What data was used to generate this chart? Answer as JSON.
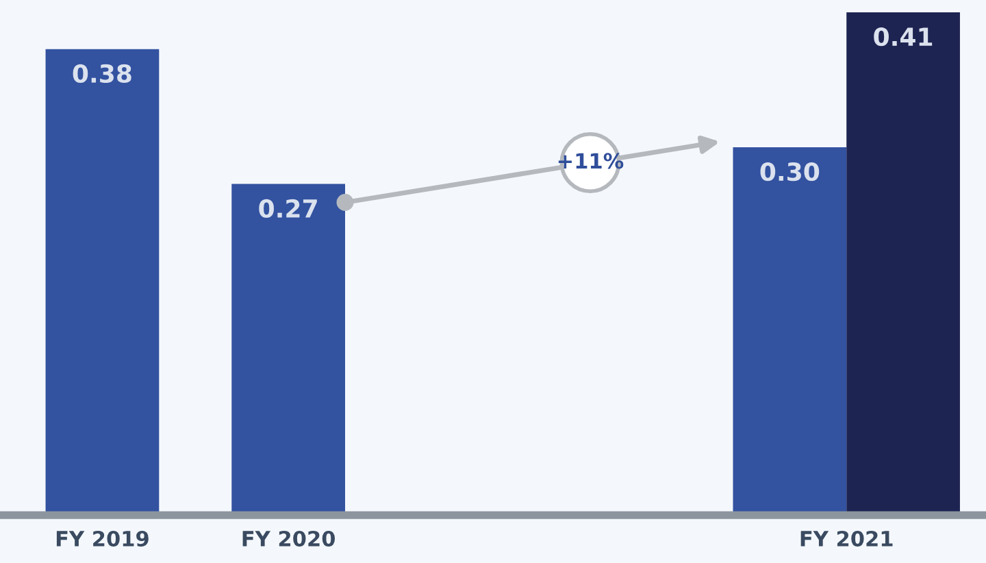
{
  "chart_data": {
    "type": "bar",
    "categories": [
      "FY 2019",
      "FY 2020",
      null,
      null,
      "FY 2021"
    ],
    "series": [
      {
        "color": "#3352a0",
        "values": [
          0.38,
          0.27,
          null,
          null,
          0.3
        ],
        "value_labels": [
          "0.38",
          "0.27",
          null,
          null,
          "0.30"
        ]
      },
      {
        "color": "#1e2452",
        "values": [
          null,
          null,
          null,
          null,
          0.41
        ],
        "value_labels": [
          null,
          null,
          null,
          null,
          "0.41"
        ]
      }
    ],
    "ylim": [
      0,
      0.42
    ],
    "tick_labels": "x",
    "grid": false,
    "legend": false,
    "annotations": [
      "+11%"
    ]
  }
}
